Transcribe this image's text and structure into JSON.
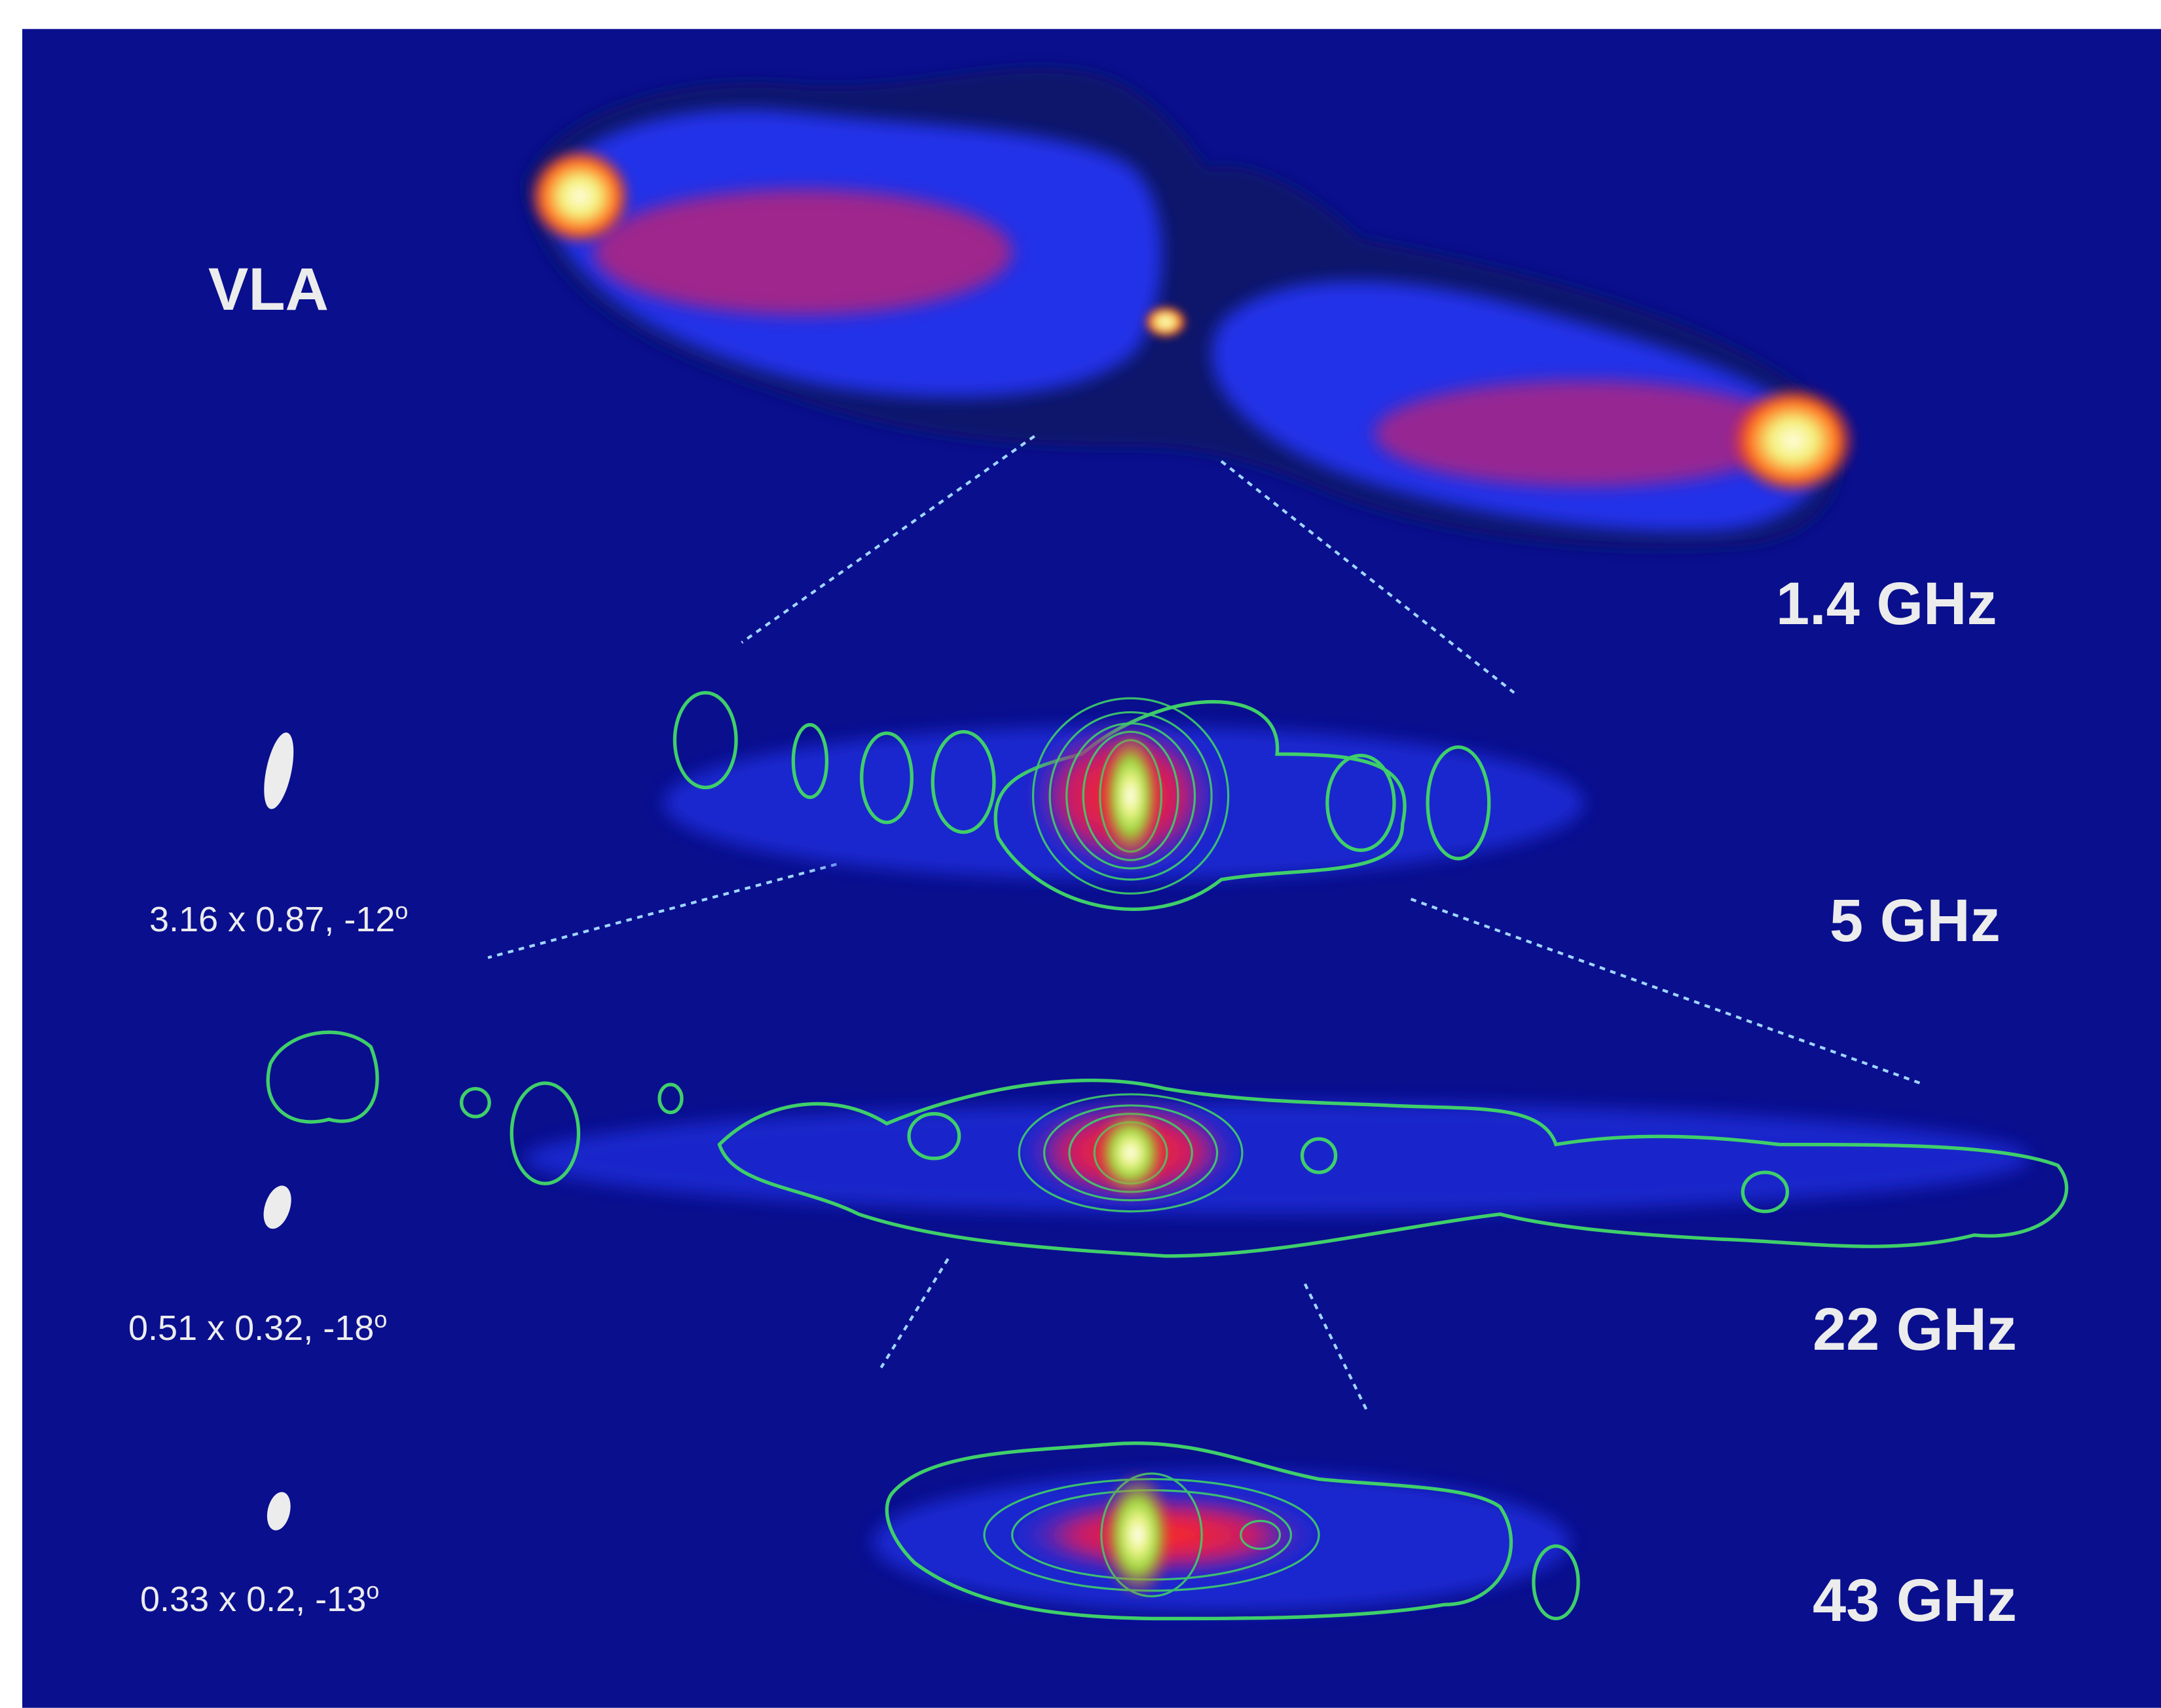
{
  "figure": {
    "instrument": "VLA",
    "panels": [
      {
        "frequency": "1.4 GHz"
      },
      {
        "frequency": "5 GHz",
        "beam_text": "3.16 x 0.87, -12",
        "beam_sup": "o"
      },
      {
        "frequency": "22 GHz",
        "beam_text": "0.51 x 0.32, -18",
        "beam_sup": "o"
      },
      {
        "frequency": "43 GHz",
        "beam_text": "0.33 x 0.2, -13",
        "beam_sup": "o"
      }
    ],
    "colors": {
      "background": "#0a0f8e",
      "contour": "#3fcf6a",
      "emission_low": "#1d2ee6",
      "emission_mid": "#e8242a",
      "emission_high": "#f4f079",
      "label": "#ececec",
      "zoom_lines": "#9fd6ff"
    }
  }
}
